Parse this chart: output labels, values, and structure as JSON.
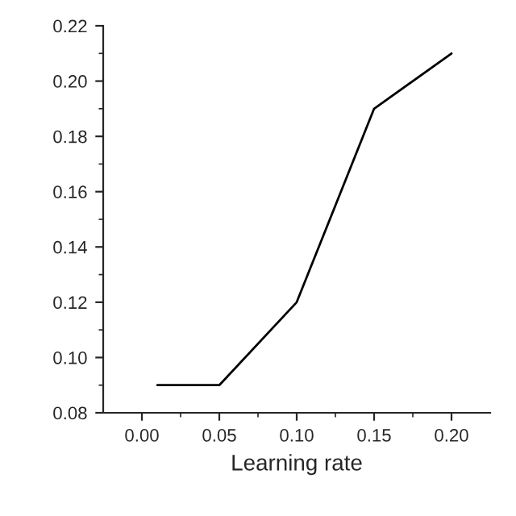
{
  "chart_data": {
    "type": "line",
    "xlabel": "Learning rate",
    "x": [
      0.01,
      0.05,
      0.1,
      0.15,
      0.2
    ],
    "series": [
      {
        "color": "#000000",
        "values": [
          0.09,
          0.09,
          0.12,
          0.19,
          0.21
        ]
      }
    ],
    "xlim": [
      -0.025,
      0.225
    ],
    "ylim": [
      0.08,
      0.22
    ],
    "xticks": [
      {
        "value": 0.0,
        "label": "0.00"
      },
      {
        "value": 0.05,
        "label": "0.05"
      },
      {
        "value": 0.1,
        "label": "0.10"
      },
      {
        "value": 0.15,
        "label": "0.15"
      },
      {
        "value": 0.2,
        "label": "0.20"
      }
    ],
    "yticks": [
      {
        "value": 0.08,
        "label": "0.08"
      },
      {
        "value": 0.1,
        "label": "0.10"
      },
      {
        "value": 0.12,
        "label": "0.12"
      },
      {
        "value": 0.14,
        "label": "0.14"
      },
      {
        "value": 0.16,
        "label": "0.16"
      },
      {
        "value": 0.18,
        "label": "0.18"
      },
      {
        "value": 0.2,
        "label": "0.20"
      },
      {
        "value": 0.22,
        "label": "0.22"
      }
    ],
    "marker": "none",
    "line_style": "solid"
  }
}
